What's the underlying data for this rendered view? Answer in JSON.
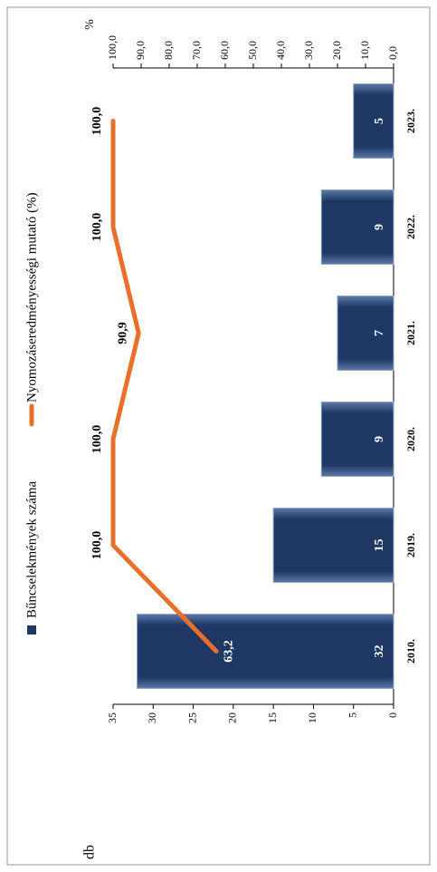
{
  "chart_data": {
    "type": "bar_line",
    "categories": [
      "2010.",
      "2019.",
      "2020.",
      "2021.",
      "2022.",
      "2023."
    ],
    "series": [
      {
        "name": "Bűncselekmények száma",
        "type": "bar",
        "color": "#1f3864",
        "values": [
          32,
          15,
          9,
          7,
          9,
          5
        ]
      },
      {
        "name": "Nyomozáseredményességi mutató (%)",
        "type": "line",
        "axis": "y2",
        "color": "#e8702a",
        "values": [
          63.2,
          100,
          100,
          90.9,
          100,
          100
        ],
        "value_labels": [
          "63,2",
          "100,0",
          "100,0",
          "90,9",
          "100,0",
          "100,0"
        ]
      }
    ],
    "ylabel": "db",
    "y2label": "%",
    "ylim": [
      0,
      35
    ],
    "yticks": [
      0,
      5,
      10,
      15,
      20,
      25,
      30,
      35
    ],
    "y2lim": [
      0,
      100
    ],
    "y2ticks": [
      {
        "value": 0,
        "label": "0,0"
      },
      {
        "value": 10,
        "label": "10,0"
      },
      {
        "value": 20,
        "label": "20,0"
      },
      {
        "value": 30,
        "label": "30,0"
      },
      {
        "value": 40,
        "label": "40,0"
      },
      {
        "value": 50,
        "label": "50,0"
      },
      {
        "value": 60,
        "label": "60,0"
      },
      {
        "value": 70,
        "label": "70,0"
      },
      {
        "value": 80,
        "label": "80,0"
      },
      {
        "value": 90,
        "label": "90,0"
      },
      {
        "value": 100,
        "label": "100,0"
      }
    ],
    "legend": "top"
  }
}
